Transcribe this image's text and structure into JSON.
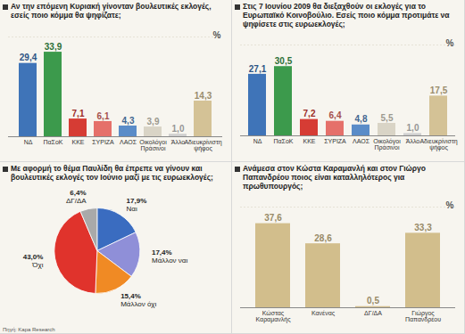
{
  "source": "Πηγή: Kapa Research",
  "chart_data": [
    {
      "type": "bar",
      "title": "Αν την επόμενη Κυριακή γίνονταν βουλευτικές εκλογές, εσείς ποιο κόμμα θα ψηφίζατε;",
      "ylabel": "%",
      "categories": [
        "ΝΔ",
        "ΠαΣοΚ",
        "ΚΚΕ",
        "ΣΥΡΙΖΑ",
        "ΛΑΟΣ",
        "Οικολόγοι Πράσινοι",
        "Άλλο",
        "Αδιευκρίνιστη ψήφος"
      ],
      "values": [
        29.4,
        33.9,
        7.1,
        6.1,
        4.3,
        3.9,
        1.0,
        14.3
      ],
      "value_labels": [
        "29,4",
        "33,9",
        "7,1",
        "6,1",
        "4,3",
        "3,9",
        "1,0",
        "14,3"
      ],
      "colors": [
        "#3f74b8",
        "#3c9a4c",
        "#d63c34",
        "#e5706a",
        "#5a8cc8",
        "#d9d4c6",
        "#cfcfcf",
        "#d4c296"
      ],
      "data_labels": true,
      "tick_labels": false,
      "ylim": [
        0,
        40
      ]
    },
    {
      "type": "bar",
      "title": "Στις 7 Ιουνίου 2009 θα διεξαχθούν οι εκλογές για το Ευρωπαϊκό Κοινοβούλιο. Εσείς ποιο κόμμα προτιμάτε να ψηφίσετε στις ευρωεκλογές;",
      "ylabel": "%",
      "categories": [
        "ΝΔ",
        "ΠαΣοΚ",
        "ΚΚΕ",
        "ΣΥΡΙΖΑ",
        "ΛΑΟΣ",
        "Οικολόγοι Πράσινοι",
        "Άλλο",
        "Αδιευκρίνιστη ψήφος"
      ],
      "values": [
        27.1,
        30.5,
        7.2,
        6.4,
        4.8,
        5.5,
        1.0,
        17.5
      ],
      "value_labels": [
        "27,1",
        "30,5",
        "7,2",
        "6,4",
        "4,8",
        "5,5",
        "1,0",
        "17,5"
      ],
      "colors": [
        "#3f74b8",
        "#3c9a4c",
        "#d63c34",
        "#e5706a",
        "#5a8cc8",
        "#d9d4c6",
        "#cfcfcf",
        "#d4c296"
      ],
      "data_labels": true,
      "tick_labels": false,
      "ylim": [
        0,
        40
      ]
    },
    {
      "type": "pie",
      "title": "Με αφορμή το θέμα Παυλίδη θα έπρεπε να γίνουν και βουλευτικές εκλογές τον Ιούνιο μαζί με τις ευρωεκλογές;",
      "categories": [
        "Ναι",
        "Μάλλον ναι",
        "Μάλλον όχι",
        "Όχι",
        "ΔΓ/ΔΑ"
      ],
      "values": [
        17.9,
        17.4,
        15.4,
        43.0,
        6.4
      ],
      "value_labels": [
        "17,9%",
        "17,4%",
        "15,4%",
        "43,0%",
        "6,4%"
      ],
      "colors": [
        "#3a6cc0",
        "#8f8fd8",
        "#f08a24",
        "#e0332c",
        "#a9a9a9"
      ],
      "data_labels": true
    },
    {
      "type": "bar",
      "title": "Ανάμεσα στον Κώστα Καραμανλή και στον Γιώργο Παπανδρέου ποιος είναι καταλληλότερος για πρωθυπουργός;",
      "ylabel": "%",
      "categories": [
        "Κώστας Καραμανλής",
        "Κανένας",
        "ΔΓ/ΔΑ",
        "Γιώργος Παπανδρέου"
      ],
      "values": [
        37.6,
        28.6,
        0.5,
        33.3
      ],
      "value_labels": [
        "37,6",
        "28,6",
        "0,5",
        "33,3"
      ],
      "color": "#d2be8c",
      "data_labels": true,
      "tick_labels": false,
      "ylim": [
        0,
        45
      ]
    }
  ]
}
